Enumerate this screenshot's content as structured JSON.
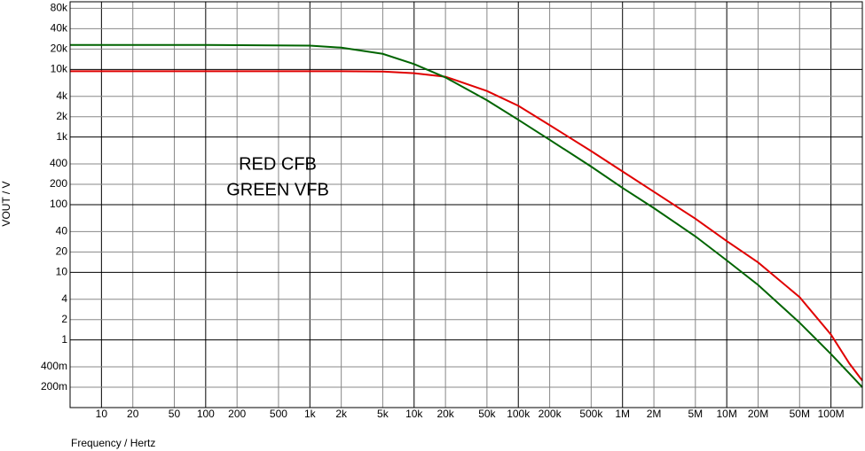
{
  "chart_data": {
    "type": "line",
    "log_x": true,
    "log_y": true,
    "grid": true,
    "x_label": "Frequency / Hertz",
    "y_label": "VOUT / V",
    "annotations": [
      "RED CFB",
      "GREEN VFB"
    ],
    "xlim": [
      5,
      200000000
    ],
    "ylim": [
      0.1,
      100000
    ],
    "xticks": [
      10,
      20,
      50,
      100,
      200,
      500,
      {
        "value": 1000,
        "label": "1k"
      },
      {
        "value": 2000,
        "label": "2k"
      },
      {
        "value": 5000,
        "label": "5k"
      },
      {
        "value": 10000,
        "label": "10k"
      },
      {
        "value": 20000,
        "label": "20k"
      },
      {
        "value": 50000,
        "label": "50k"
      },
      {
        "value": 100000,
        "label": "100k"
      },
      {
        "value": 200000,
        "label": "200k"
      },
      {
        "value": 500000,
        "label": "500k"
      },
      {
        "value": 1000000,
        "label": "1M"
      },
      {
        "value": 2000000,
        "label": "2M"
      },
      {
        "value": 5000000,
        "label": "5M"
      },
      {
        "value": 10000000,
        "label": "10M"
      },
      {
        "value": 20000000,
        "label": "20M"
      },
      {
        "value": 50000000,
        "label": "50M"
      },
      {
        "value": 100000000,
        "label": "100M"
      }
    ],
    "yticks": [
      {
        "value": 0.2,
        "label": "200m"
      },
      {
        "value": 0.4,
        "label": "400m"
      },
      1,
      2,
      4,
      10,
      20,
      40,
      100,
      200,
      400,
      {
        "value": 1000,
        "label": "1k"
      },
      {
        "value": 2000,
        "label": "2k"
      },
      {
        "value": 4000,
        "label": "4k"
      },
      {
        "value": 10000,
        "label": "10k"
      },
      {
        "value": 20000,
        "label": "20k"
      },
      {
        "value": 40000,
        "label": "40k"
      },
      {
        "value": 80000,
        "label": "80k"
      }
    ],
    "x": [
      5,
      100,
      1000,
      2000,
      5000,
      10000,
      20000,
      50000,
      100000,
      200000,
      500000,
      1000000,
      2000000,
      5000000,
      10000000,
      20000000,
      50000000,
      100000000,
      150000000,
      200000000
    ],
    "series": [
      {
        "name": "CFB",
        "color": "#e00000",
        "values": [
          9400,
          9400,
          9400,
          9400,
          9300,
          8800,
          7800,
          4800,
          2900,
          1500,
          620,
          310,
          155,
          62,
          29,
          14,
          4.3,
          1.2,
          0.45,
          0.25
        ]
      },
      {
        "name": "VFB",
        "color": "#006400",
        "values": [
          23000,
          23000,
          22500,
          21000,
          17000,
          12000,
          7600,
          3500,
          1800,
          910,
          366,
          177,
          89,
          34,
          15,
          6.5,
          1.8,
          0.62,
          0.32,
          0.2
        ]
      }
    ]
  }
}
